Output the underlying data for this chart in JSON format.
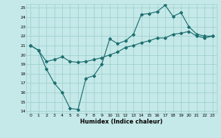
{
  "xlabel": "Humidex (Indice chaleur)",
  "background_color": "#c5e8e8",
  "grid_color": "#9fcfcf",
  "line_color": "#1e7070",
  "xlim": [
    -0.5,
    23.5
  ],
  "ylim": [
    13.8,
    25.4
  ],
  "xticks": [
    0,
    1,
    2,
    3,
    4,
    5,
    6,
    7,
    8,
    9,
    10,
    11,
    12,
    13,
    14,
    15,
    16,
    17,
    18,
    19,
    20,
    21,
    22,
    23
  ],
  "yticks": [
    14,
    15,
    16,
    17,
    18,
    19,
    20,
    21,
    22,
    23,
    24,
    25
  ],
  "line1_x": [
    0,
    1,
    2,
    3,
    4,
    5,
    6,
    7,
    8,
    9,
    10,
    11,
    12,
    13,
    14,
    15,
    16,
    17,
    18,
    19,
    20,
    21,
    22,
    23
  ],
  "line1_y": [
    21.0,
    20.5,
    19.3,
    19.5,
    19.8,
    19.3,
    19.2,
    19.3,
    19.5,
    19.7,
    20.0,
    20.3,
    20.8,
    21.0,
    21.3,
    21.5,
    21.8,
    21.8,
    22.2,
    22.3,
    22.5,
    22.0,
    21.8,
    22.0
  ],
  "line2_x": [
    0,
    1,
    2,
    3,
    4,
    5,
    6,
    7,
    8,
    9,
    10,
    11,
    12,
    13,
    14,
    15,
    16,
    17,
    18,
    19,
    20,
    21,
    22,
    23
  ],
  "line2_y": [
    21.0,
    20.5,
    18.5,
    17.0,
    16.0,
    14.3,
    14.2,
    17.5,
    17.8,
    19.0,
    21.7,
    21.2,
    21.5,
    22.2,
    24.3,
    24.4,
    24.6,
    25.3,
    24.1,
    24.5,
    23.0,
    22.2,
    22.0,
    22.0
  ]
}
